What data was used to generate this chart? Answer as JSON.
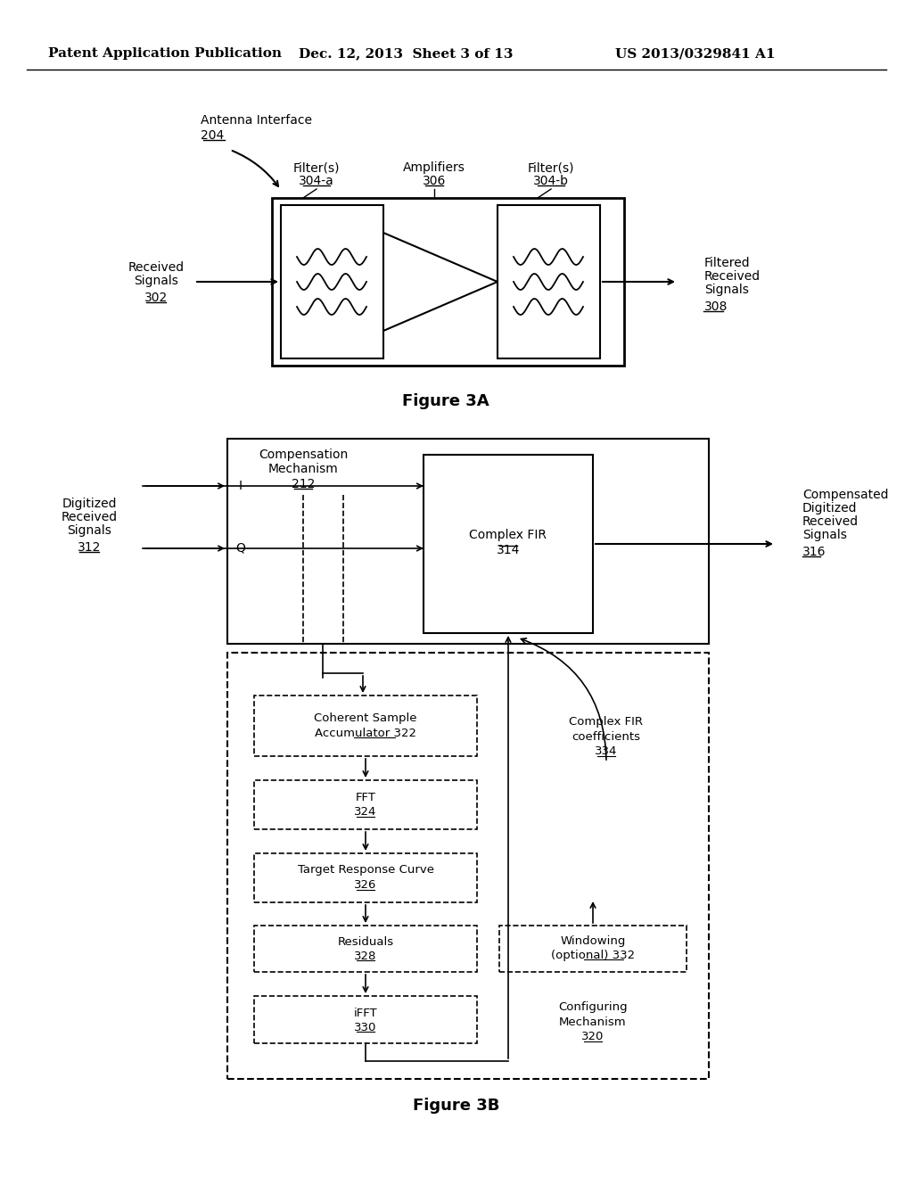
{
  "bg_color": "#ffffff",
  "header_left": "Patent Application Publication",
  "header_mid": "Dec. 12, 2013  Sheet 3 of 13",
  "header_right": "US 2013/0329841 A1",
  "fig3a_title": "Figure 3A",
  "fig3b_title": "Figure 3B",
  "header_fontsize": 11,
  "label_fontsize": 10,
  "small_fontsize": 9.5
}
